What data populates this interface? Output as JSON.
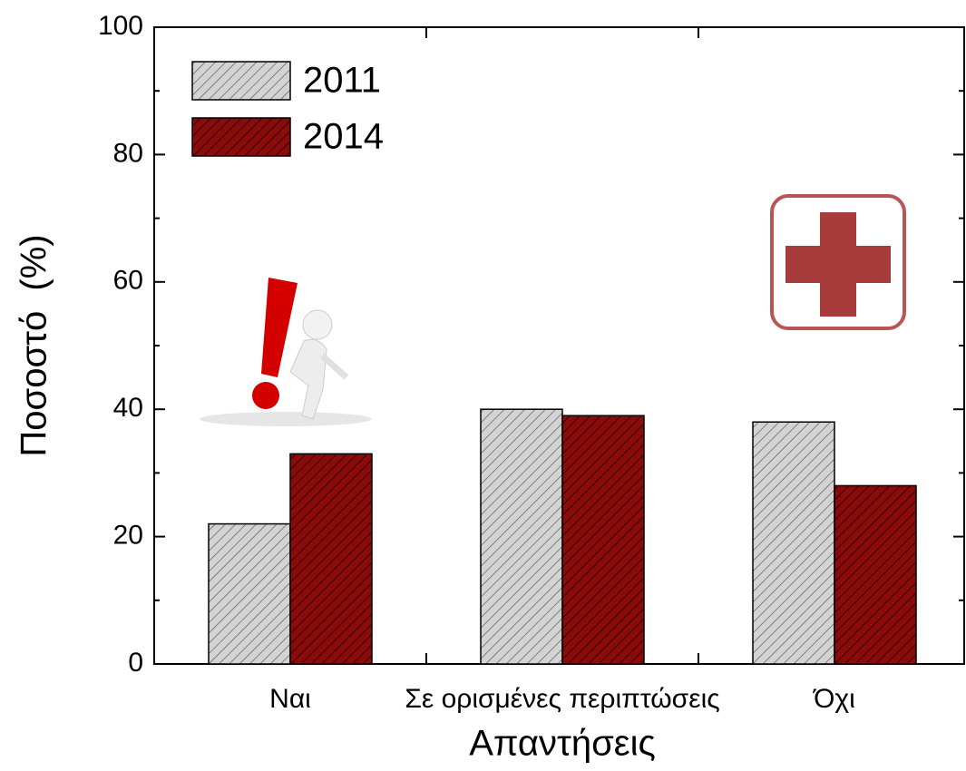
{
  "chart_data": {
    "type": "bar",
    "categories": [
      "Ναι",
      "Σε ορισμένες περιπτώσεις",
      "Όχι"
    ],
    "series": [
      {
        "name": "2011",
        "color": "#d3d3d3",
        "values": [
          22,
          40,
          38
        ]
      },
      {
        "name": "2014",
        "color": "#8b0a0a",
        "values": [
          33,
          39,
          28
        ]
      }
    ],
    "ylabel": "Ποσοστό  (%)",
    "xlabel": "Απαντήσεις",
    "ylim": [
      0,
      100
    ],
    "yticks": [
      0,
      20,
      40,
      60,
      80,
      100
    ],
    "legend": "upper left"
  }
}
